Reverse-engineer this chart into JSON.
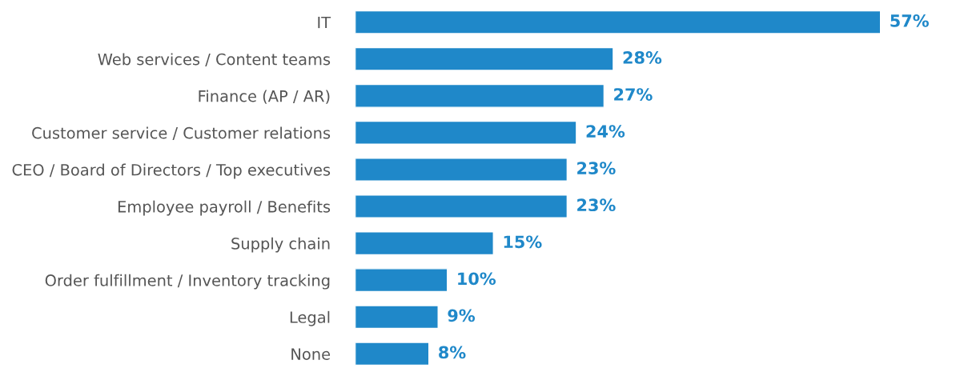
{
  "chart_data": {
    "type": "bar",
    "orientation": "horizontal",
    "categories": [
      "IT",
      "Web services / Content teams",
      "Finance (AP / AR)",
      "Customer service / Customer relations",
      "CEO / Board of Directors / Top executives",
      "Employee payroll / Benefits",
      "Supply chain",
      "Order fulfillment / Inventory tracking",
      "Legal",
      "None"
    ],
    "values": [
      57,
      28,
      27,
      24,
      23,
      23,
      15,
      10,
      9,
      8
    ],
    "value_labels": [
      "57%",
      "28%",
      "27%",
      "24%",
      "23%",
      "23%",
      "15%",
      "10%",
      "9%",
      "8%"
    ],
    "color": "#1f88c9",
    "grid": false,
    "legend": false
  }
}
